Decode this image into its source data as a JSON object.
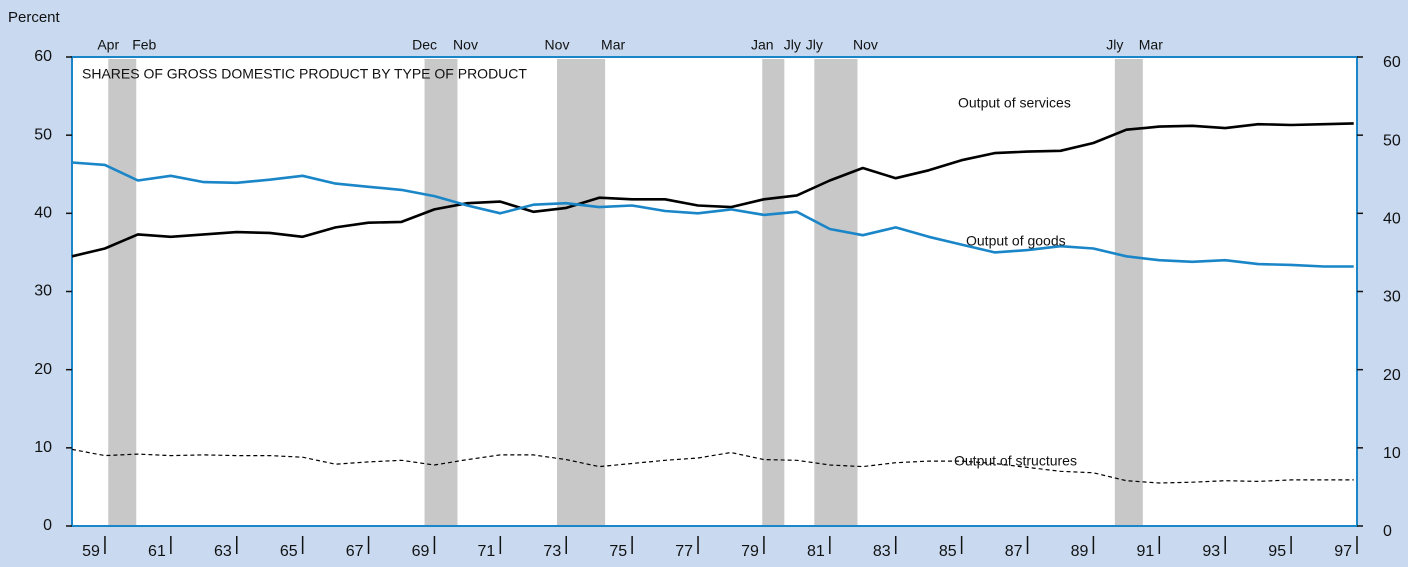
{
  "chart_data": {
    "type": "line",
    "y_label": "Percent",
    "title": "SHARES OF GROSS DOMESTIC PRODUCT BY TYPE OF PRODUCT",
    "x": [
      1959,
      1960,
      1961,
      1962,
      1963,
      1964,
      1965,
      1966,
      1967,
      1968,
      1969,
      1970,
      1971,
      1972,
      1973,
      1974,
      1975,
      1976,
      1977,
      1978,
      1979,
      1980,
      1981,
      1982,
      1983,
      1984,
      1985,
      1986,
      1987,
      1988,
      1989,
      1990,
      1991,
      1992,
      1993,
      1994,
      1995,
      1996,
      1997,
      1997.9
    ],
    "series": [
      {
        "name": "Output of services",
        "color": "#000000",
        "style": "solid",
        "values": [
          34.5,
          35.5,
          37.3,
          37.0,
          37.3,
          37.6,
          37.5,
          37.0,
          38.2,
          38.8,
          38.9,
          40.5,
          41.3,
          41.5,
          40.2,
          40.7,
          42.0,
          41.8,
          41.8,
          41.0,
          40.8,
          41.8,
          42.3,
          44.2,
          45.8,
          44.5,
          45.5,
          46.8,
          47.7,
          47.9,
          48.0,
          49.0,
          50.7,
          51.1,
          51.2,
          50.9,
          51.4,
          51.3,
          51.4,
          51.5
        ]
      },
      {
        "name": "Output of goods",
        "color": "#1a86c8",
        "style": "solid",
        "values": [
          46.5,
          46.2,
          44.2,
          44.8,
          44.0,
          43.9,
          44.3,
          44.8,
          43.8,
          43.4,
          43.0,
          42.2,
          41.0,
          40.0,
          41.1,
          41.3,
          40.8,
          41.0,
          40.3,
          40.0,
          40.5,
          39.8,
          40.2,
          38.0,
          37.2,
          38.2,
          37.0,
          36.0,
          35.0,
          35.3,
          35.8,
          35.5,
          34.5,
          34.0,
          33.8,
          34.0,
          33.5,
          33.4,
          33.2,
          33.2
        ]
      },
      {
        "name": "Output of structures",
        "color": "#000000",
        "style": "dashed",
        "values": [
          9.8,
          9.0,
          9.2,
          9.0,
          9.1,
          9.0,
          9.0,
          8.8,
          7.9,
          8.2,
          8.4,
          7.8,
          8.5,
          9.1,
          9.1,
          8.5,
          7.6,
          8.0,
          8.4,
          8.7,
          9.4,
          8.5,
          8.4,
          7.8,
          7.6,
          8.1,
          8.3,
          8.3,
          8.0,
          7.5,
          7.0,
          6.8,
          5.8,
          5.5,
          5.6,
          5.8,
          5.7,
          5.9,
          5.9,
          5.9
        ]
      }
    ],
    "recessions": [
      {
        "start": 1960.1,
        "end": 1960.95,
        "start_label": "Apr",
        "end_label": "Feb"
      },
      {
        "start": 1969.7,
        "end": 1970.7,
        "start_label": "Dec",
        "end_label": "Nov"
      },
      {
        "start": 1973.72,
        "end": 1975.18,
        "start_label": "Nov",
        "end_label": "Mar"
      },
      {
        "start": 1979.95,
        "end": 1980.62,
        "start_label": "Jan",
        "end_label": "Jly"
      },
      {
        "start": 1981.53,
        "end": 1982.84,
        "start_label": "Jly",
        "end_label": "Nov"
      },
      {
        "start": 1990.65,
        "end": 1991.5,
        "start_label": "Jly",
        "end_label": "Mar"
      }
    ],
    "recession_color": "#c8c8c8",
    "xlim": [
      1959,
      1998
    ],
    "xticks": [
      {
        "value": 1960,
        "label": "59"
      },
      {
        "value": 1962,
        "label": "61"
      },
      {
        "value": 1964,
        "label": "63"
      },
      {
        "value": 1966,
        "label": "65"
      },
      {
        "value": 1968,
        "label": "67"
      },
      {
        "value": 1970,
        "label": "69"
      },
      {
        "value": 1972,
        "label": "71"
      },
      {
        "value": 1974,
        "label": "73"
      },
      {
        "value": 1976,
        "label": "75"
      },
      {
        "value": 1978,
        "label": "77"
      },
      {
        "value": 1980,
        "label": "79"
      },
      {
        "value": 1982,
        "label": "81"
      },
      {
        "value": 1984,
        "label": "83"
      },
      {
        "value": 1986,
        "label": "85"
      },
      {
        "value": 1988,
        "label": "87"
      },
      {
        "value": 1990,
        "label": "89"
      },
      {
        "value": 1992,
        "label": "91"
      },
      {
        "value": 1994,
        "label": "93"
      },
      {
        "value": 1996,
        "label": "95"
      },
      {
        "value": 1998,
        "label": "97"
      }
    ],
    "ylim": [
      0,
      60
    ],
    "yticks": [
      0,
      10,
      20,
      30,
      40,
      50,
      60
    ],
    "y2lim": [
      0,
      60
    ],
    "y2ticks": [
      0,
      10,
      20,
      30,
      40,
      50,
      60
    ],
    "grid": false,
    "frame_color": "#1a86c8"
  }
}
